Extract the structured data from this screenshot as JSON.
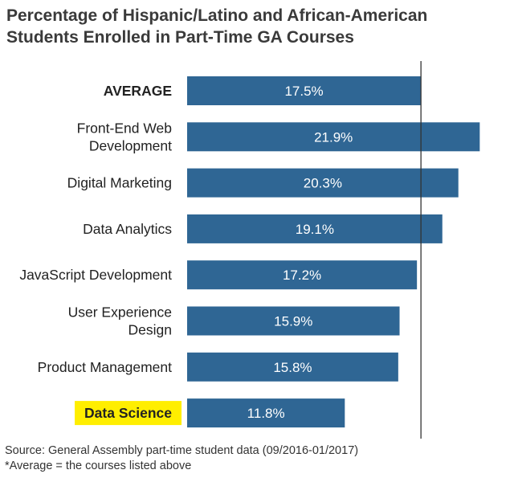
{
  "title_lines": [
    "Percentage of Hispanic/Latino and African-American",
    "Students Enrolled in Part-Time GA Courses"
  ],
  "footer": {
    "source": "Source: General Assembly part-time student data (09/2016-01/2017)",
    "note": "*Average = the courses listed above"
  },
  "colors": {
    "bar": "#2f6694",
    "highlight": "#ffee00",
    "reference_line": "#333333"
  },
  "chart_data": {
    "type": "bar",
    "orientation": "horizontal",
    "title": "Percentage of Hispanic/Latino and African-American Students Enrolled in Part-Time GA Courses",
    "categories": [
      [
        "AVERAGE"
      ],
      [
        "Front-End Web",
        "Development"
      ],
      [
        "Digital Marketing"
      ],
      [
        "Data Analytics"
      ],
      [
        "JavaScript Development"
      ],
      [
        "User Experience",
        "Design"
      ],
      [
        "Product Management"
      ],
      [
        "Data Science"
      ]
    ],
    "values": [
      17.5,
      21.9,
      20.3,
      19.1,
      17.2,
      15.9,
      15.8,
      11.8
    ],
    "value_labels": [
      "17.5%",
      "21.9%",
      "20.3%",
      "19.1%",
      "17.2%",
      "15.9%",
      "15.8%",
      "11.8%"
    ],
    "bold_categories": [
      0,
      7
    ],
    "highlighted_categories": [
      7
    ],
    "reference_line_value": 17.5,
    "xlim": [
      0,
      22.3
    ],
    "xlabel": "",
    "ylabel": ""
  }
}
